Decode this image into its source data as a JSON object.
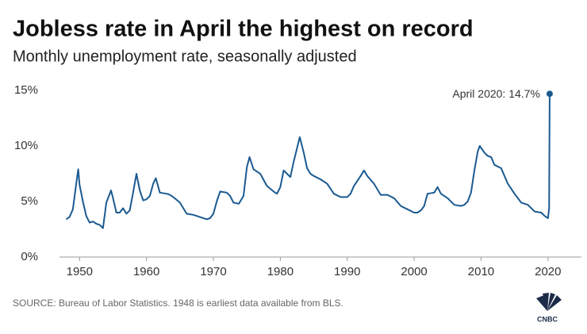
{
  "chart_data": {
    "type": "line",
    "title": "Jobless rate in April the highest on record",
    "subtitle": "Monthly unemployment rate, seasonally adjusted",
    "annotation": "April 2020: 14.7%",
    "source": "SOURCE: Bureau of Labor Statistics. 1948 is earliest data available from BLS.",
    "logo": "CNBC",
    "color": "#1b5a91",
    "x": [
      1948.0,
      1948.5,
      1949.0,
      1949.5,
      1949.8,
      1950.0,
      1950.5,
      1951.0,
      1951.5,
      1952.0,
      1952.5,
      1953.0,
      1953.5,
      1954.0,
      1954.7,
      1955.0,
      1955.5,
      1956.0,
      1956.5,
      1957.0,
      1957.5,
      1958.0,
      1958.5,
      1959.0,
      1959.5,
      1960.0,
      1960.5,
      1961.0,
      1961.4,
      1962.0,
      1963.0,
      1963.5,
      1964.0,
      1965.0,
      1966.0,
      1967.0,
      1968.0,
      1969.0,
      1969.5,
      1970.0,
      1970.5,
      1971.0,
      1972.0,
      1972.5,
      1973.0,
      1973.8,
      1974.5,
      1975.0,
      1975.4,
      1976.0,
      1977.0,
      1978.0,
      1979.0,
      1979.5,
      1980.0,
      1980.5,
      1981.0,
      1981.5,
      1982.0,
      1982.5,
      1982.9,
      1983.5,
      1984.0,
      1984.5,
      1985.0,
      1986.0,
      1987.0,
      1988.0,
      1989.0,
      1990.0,
      1990.5,
      1991.0,
      1992.0,
      1992.5,
      1993.0,
      1994.0,
      1995.0,
      1996.0,
      1997.0,
      1998.0,
      1999.0,
      2000.0,
      2000.5,
      2001.0,
      2001.5,
      2002.0,
      2003.0,
      2003.5,
      2004.0,
      2005.0,
      2006.0,
      2007.0,
      2007.5,
      2008.0,
      2008.5,
      2009.0,
      2009.5,
      2009.8,
      2010.5,
      2011.0,
      2011.5,
      2012.0,
      2013.0,
      2014.0,
      2015.0,
      2016.0,
      2017.0,
      2018.0,
      2019.0,
      2019.5,
      2020.0,
      2020.17,
      2020.25
    ],
    "values": [
      3.4,
      3.6,
      4.3,
      6.6,
      7.9,
      6.5,
      5.0,
      3.7,
      3.1,
      3.2,
      3.0,
      2.9,
      2.6,
      4.9,
      6.0,
      5.3,
      4.0,
      4.0,
      4.4,
      3.9,
      4.2,
      5.8,
      7.5,
      6.0,
      5.1,
      5.2,
      5.5,
      6.6,
      7.1,
      5.8,
      5.7,
      5.6,
      5.4,
      4.9,
      3.9,
      3.8,
      3.6,
      3.4,
      3.5,
      3.9,
      5.0,
      5.9,
      5.8,
      5.5,
      4.9,
      4.8,
      5.5,
      8.1,
      9.0,
      7.9,
      7.5,
      6.4,
      5.9,
      5.7,
      6.3,
      7.8,
      7.5,
      7.2,
      8.6,
      9.8,
      10.8,
      9.4,
      8.0,
      7.5,
      7.3,
      7.0,
      6.6,
      5.7,
      5.4,
      5.4,
      5.7,
      6.4,
      7.3,
      7.8,
      7.3,
      6.6,
      5.6,
      5.6,
      5.3,
      4.6,
      4.3,
      4.0,
      4.0,
      4.2,
      4.6,
      5.7,
      5.8,
      6.3,
      5.7,
      5.3,
      4.7,
      4.6,
      4.7,
      5.0,
      5.8,
      7.8,
      9.5,
      10.0,
      9.4,
      9.1,
      9.0,
      8.3,
      8.0,
      6.6,
      5.7,
      4.9,
      4.7,
      4.1,
      4.0,
      3.7,
      3.5,
      4.4,
      14.7
    ],
    "xlim": [
      1947,
      2025
    ],
    "xticks": [
      1950,
      1960,
      1970,
      1980,
      1990,
      2000,
      2010,
      2020
    ],
    "ylim": [
      0,
      15
    ],
    "yticks": [
      {
        "value": 0,
        "label": "0%"
      },
      {
        "value": 5,
        "label": "5%"
      },
      {
        "value": 10,
        "label": "10%"
      },
      {
        "value": 15,
        "label": "15%"
      }
    ]
  }
}
